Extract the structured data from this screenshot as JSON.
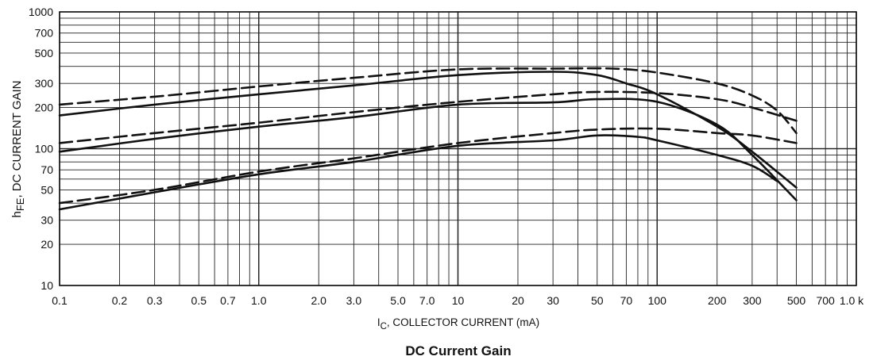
{
  "chart_data": {
    "type": "line",
    "title": "DC Current Gain",
    "xlabel_main": "I",
    "xlabel_sub": "C",
    "xlabel_rest": ", COLLECTOR CURRENT (mA)",
    "ylabel_main": "h",
    "ylabel_sub": "FE",
    "ylabel_rest": ", DC CURRENT GAIN",
    "x_scale": "log",
    "y_scale": "log",
    "xlim": [
      0.1,
      1000
    ],
    "ylim": [
      10,
      1000
    ],
    "grid": true,
    "x_ticks": [
      {
        "value": 0.1,
        "label": "0.1"
      },
      {
        "value": 0.2,
        "label": "0.2"
      },
      {
        "value": 0.3,
        "label": "0.3"
      },
      {
        "value": 0.5,
        "label": "0.5"
      },
      {
        "value": 0.7,
        "label": "0.7"
      },
      {
        "value": 1,
        "label": "1.0"
      },
      {
        "value": 2,
        "label": "2.0"
      },
      {
        "value": 3,
        "label": "3.0"
      },
      {
        "value": 5,
        "label": "5.0"
      },
      {
        "value": 7,
        "label": "7.0"
      },
      {
        "value": 10,
        "label": "10"
      },
      {
        "value": 20,
        "label": "20"
      },
      {
        "value": 30,
        "label": "30"
      },
      {
        "value": 50,
        "label": "50"
      },
      {
        "value": 70,
        "label": "70"
      },
      {
        "value": 100,
        "label": "100"
      },
      {
        "value": 200,
        "label": "200"
      },
      {
        "value": 300,
        "label": "300"
      },
      {
        "value": 500,
        "label": "500"
      },
      {
        "value": 700,
        "label": "700"
      },
      {
        "value": 1000,
        "label": "1.0 k"
      }
    ],
    "y_ticks": [
      {
        "value": 10,
        "label": "10"
      },
      {
        "value": 20,
        "label": "20"
      },
      {
        "value": 30,
        "label": "30"
      },
      {
        "value": 50,
        "label": "50"
      },
      {
        "value": 70,
        "label": "70"
      },
      {
        "value": 100,
        "label": "100"
      },
      {
        "value": 200,
        "label": "200"
      },
      {
        "value": 300,
        "label": "300"
      },
      {
        "value": 500,
        "label": "500"
      },
      {
        "value": 700,
        "label": "700"
      },
      {
        "value": 1000,
        "label": "1000"
      }
    ],
    "series": [
      {
        "style": "solid",
        "points": [
          [
            0.1,
            175
          ],
          [
            0.3,
            210
          ],
          [
            1,
            250
          ],
          [
            3,
            290
          ],
          [
            10,
            345
          ],
          [
            30,
            365
          ],
          [
            50,
            345
          ],
          [
            70,
            300
          ],
          [
            100,
            250
          ],
          [
            200,
            145
          ],
          [
            300,
            95
          ],
          [
            500,
            52
          ]
        ]
      },
      {
        "style": "dashed",
        "points": [
          [
            0.1,
            210
          ],
          [
            0.3,
            240
          ],
          [
            1,
            285
          ],
          [
            3,
            330
          ],
          [
            10,
            380
          ],
          [
            30,
            385
          ],
          [
            60,
            385
          ],
          [
            100,
            360
          ],
          [
            200,
            300
          ],
          [
            300,
            245
          ],
          [
            400,
            190
          ],
          [
            500,
            130
          ]
        ]
      },
      {
        "style": "solid",
        "points": [
          [
            0.1,
            95
          ],
          [
            0.3,
            118
          ],
          [
            1,
            145
          ],
          [
            3,
            170
          ],
          [
            10,
            210
          ],
          [
            30,
            218
          ],
          [
            50,
            230
          ],
          [
            100,
            220
          ],
          [
            200,
            150
          ],
          [
            300,
            90
          ],
          [
            500,
            42
          ]
        ]
      },
      {
        "style": "dashed",
        "points": [
          [
            0.1,
            110
          ],
          [
            0.3,
            130
          ],
          [
            1,
            155
          ],
          [
            3,
            185
          ],
          [
            10,
            220
          ],
          [
            30,
            250
          ],
          [
            50,
            260
          ],
          [
            100,
            255
          ],
          [
            200,
            230
          ],
          [
            300,
            200
          ],
          [
            500,
            160
          ]
        ]
      },
      {
        "style": "solid",
        "points": [
          [
            0.1,
            36
          ],
          [
            0.3,
            48
          ],
          [
            1,
            65
          ],
          [
            3,
            80
          ],
          [
            10,
            105
          ],
          [
            30,
            115
          ],
          [
            50,
            125
          ],
          [
            80,
            122
          ],
          [
            100,
            115
          ],
          [
            200,
            90
          ],
          [
            300,
            75
          ],
          [
            400,
            58
          ]
        ]
      },
      {
        "style": "dashed",
        "points": [
          [
            0.1,
            40
          ],
          [
            0.3,
            50
          ],
          [
            1,
            68
          ],
          [
            3,
            85
          ],
          [
            10,
            110
          ],
          [
            30,
            130
          ],
          [
            50,
            138
          ],
          [
            100,
            140
          ],
          [
            200,
            130
          ],
          [
            300,
            125
          ],
          [
            500,
            110
          ]
        ]
      }
    ]
  }
}
